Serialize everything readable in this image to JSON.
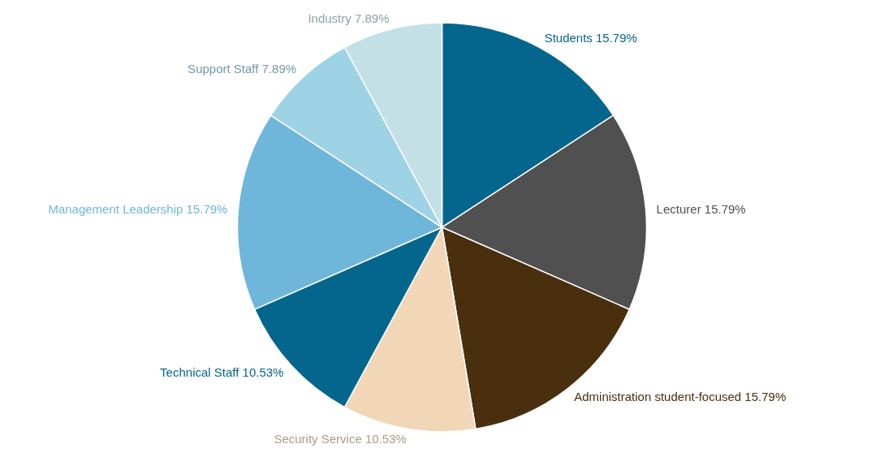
{
  "chart_data": {
    "type": "pie",
    "categories": [
      "Students",
      "Lecturer",
      "Administration student-focused",
      "Security Service",
      "Technical Staff",
      "Management Leadership",
      "Support Staff",
      "Industry"
    ],
    "values": [
      15.79,
      15.79,
      15.79,
      10.53,
      10.53,
      15.79,
      7.89,
      7.89
    ],
    "value_labels": [
      "15.79%",
      "15.79%",
      "15.79%",
      "10.53%",
      "10.53%",
      "15.79%",
      "7.89%",
      "7.89%"
    ],
    "colors": [
      "#05668d",
      "#505050",
      "#4a2f0e",
      "#f2d6b8",
      "#05668d",
      "#6fb7da",
      "#9ed3e6",
      "#c2e0e6"
    ]
  }
}
